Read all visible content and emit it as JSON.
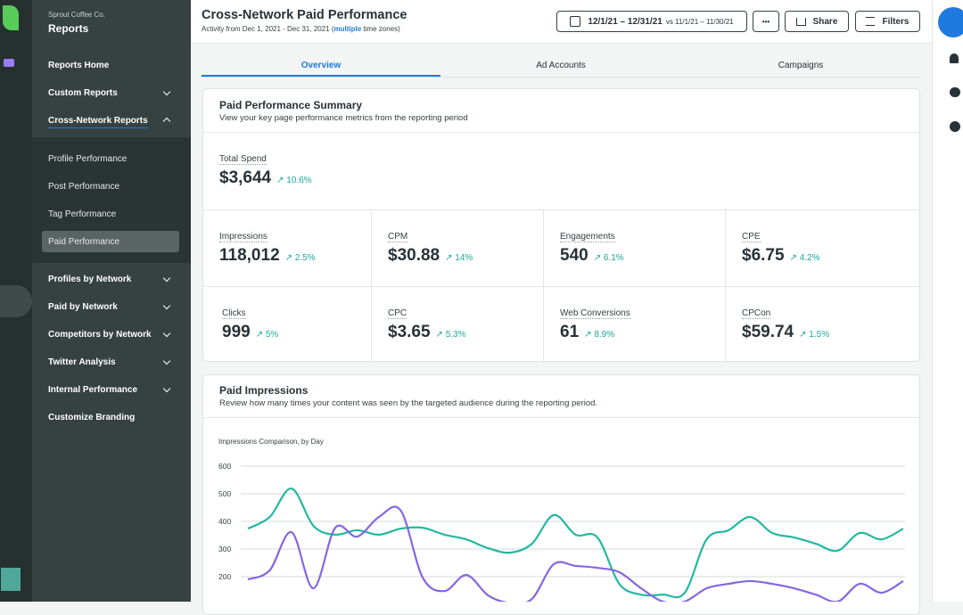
{
  "sidebar": {
    "org": "Sprout Coffee Co.",
    "section": "Reports",
    "items": [
      "Reports Home",
      "Custom Reports",
      "Cross-Network Reports"
    ],
    "subitems": [
      "Profile Performance",
      "Post Performance",
      "Tag Performance",
      "Paid Performance"
    ],
    "more": [
      "Profiles by Network",
      "Paid by Network",
      "Competitors by Network",
      "Twitter Analysis",
      "Internal Performance",
      "Customize Branding"
    ]
  },
  "header": {
    "title": "Cross-Network Paid Performance",
    "subtitle_pre": "Activity from Dec 1, 2021 - Dec 31, 2021 (",
    "subtitle_link": "multiple",
    "subtitle_post": " time zones)",
    "date": "12/1/21 – 12/31/21",
    "compare": "vs 11/1/21 – 11/30/21",
    "more": "•••",
    "share": "Share",
    "filters": "Filters"
  },
  "tabs": [
    "Overview",
    "Ad Accounts",
    "Campaigns"
  ],
  "summary": {
    "title": "Paid Performance Summary",
    "subtitle": "View your key page performance metrics from the reporting period",
    "total": {
      "label": "Total Spend",
      "value": "$3,644",
      "change": "10.6%"
    },
    "metrics": [
      {
        "label": "Impressions",
        "value": "118,012",
        "change": "2.5%"
      },
      {
        "label": "CPM",
        "value": "$30.88",
        "change": "14%"
      },
      {
        "label": "Engagements",
        "value": "540",
        "change": "6.1%"
      },
      {
        "label": "CPE",
        "value": "$6.75",
        "change": "4.2%"
      },
      {
        "label": "Clicks",
        "value": "999",
        "change": "5%"
      },
      {
        "label": "CPC",
        "value": "$3.65",
        "change": "5.3%"
      },
      {
        "label": "Web Conversions",
        "value": "61",
        "change": "8.9%"
      },
      {
        "label": "CPCon",
        "value": "$59.74",
        "change": "1.5%"
      }
    ]
  },
  "impressions": {
    "title": "Paid Impressions",
    "subtitle": "Review how many times your content was seen by the targeted audience during the reporting period."
  },
  "chart_data": {
    "type": "line",
    "title": "Impressions Comparison, by Day",
    "ylim": [
      100,
      600
    ],
    "yticks": [
      200,
      300,
      400,
      500,
      600
    ],
    "grid": true,
    "series": [
      {
        "color": "#22b8a0",
        "values": [
          374,
          416,
          519,
          384,
          352,
          368,
          352,
          374,
          377,
          352,
          335,
          303,
          287,
          319,
          423,
          352,
          342,
          174,
          135,
          135,
          142,
          335,
          368,
          416,
          358,
          342,
          319,
          294,
          358,
          335,
          374
        ]
      },
      {
        "color": "#8566e0",
        "values": [
          190,
          223,
          361,
          158,
          377,
          345,
          416,
          439,
          197,
          148,
          206,
          132,
          105,
          119,
          245,
          239,
          232,
          216,
          158,
          110,
          110,
          158,
          174,
          184,
          174,
          158,
          135,
          110,
          174,
          142,
          184
        ]
      }
    ]
  }
}
